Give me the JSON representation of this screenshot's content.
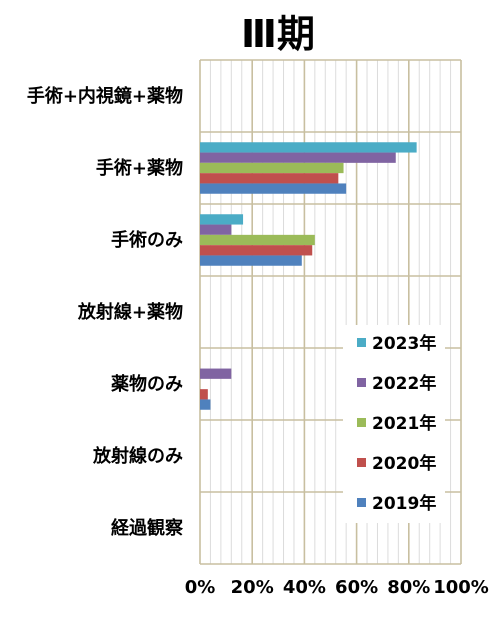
{
  "chart_data": {
    "type": "bar",
    "orientation": "horizontal",
    "title": "Ⅲ期",
    "categories": [
      "手術+内視鏡+薬物",
      "手術+薬物",
      "手術のみ",
      "放射線+薬物",
      "薬物のみ",
      "放射線のみ",
      "経過観察"
    ],
    "series": [
      {
        "name": "2023年",
        "color": "#4bacc6",
        "values": [
          0,
          83,
          16.5,
          0,
          0,
          0,
          0
        ]
      },
      {
        "name": "2022年",
        "color": "#8064a2",
        "values": [
          0,
          75,
          12,
          0,
          12,
          0,
          0
        ]
      },
      {
        "name": "2021年",
        "color": "#9bbb59",
        "values": [
          0,
          55,
          44,
          0,
          0,
          0,
          0
        ]
      },
      {
        "name": "2020年",
        "color": "#c0504d",
        "values": [
          0,
          53,
          43,
          0,
          3,
          0,
          0
        ]
      },
      {
        "name": "2019年",
        "color": "#4f81bd",
        "values": [
          0,
          56,
          39,
          0,
          4,
          0,
          0
        ]
      }
    ],
    "xlim": [
      0,
      100
    ],
    "xticks": [
      "0%",
      "20%",
      "40%",
      "60%",
      "80%",
      "100%"
    ],
    "xlabel": "",
    "ylabel": "",
    "grid": true,
    "legend_position": "right"
  }
}
